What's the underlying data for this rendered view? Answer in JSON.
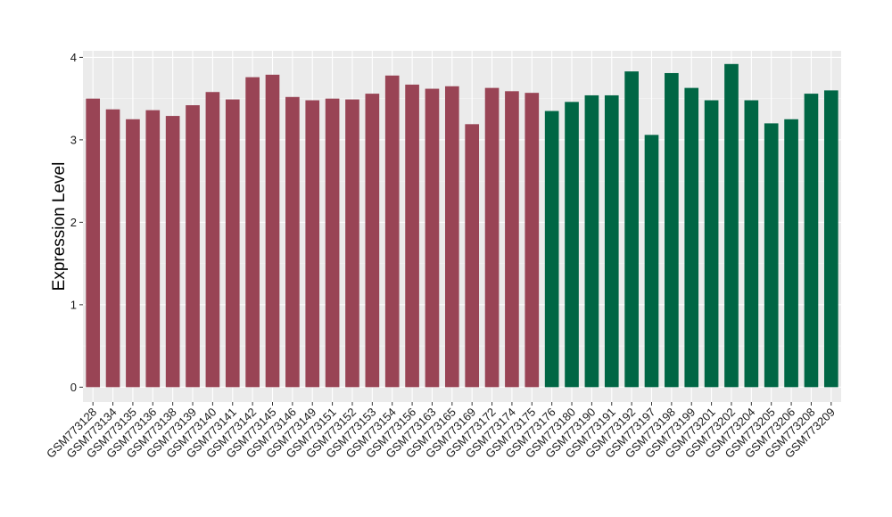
{
  "chart_data": {
    "type": "bar",
    "ylabel": "Expression Level",
    "xlabel": "",
    "ylim": [
      -0.18,
      4.08
    ],
    "yticks": [
      0,
      1,
      2,
      3,
      4
    ],
    "grid": true,
    "background": "#EBEBEB",
    "categories": [
      "GSM773128",
      "GSM773134",
      "GSM773135",
      "GSM773136",
      "GSM773138",
      "GSM773139",
      "GSM773140",
      "GSM773141",
      "GSM773142",
      "GSM773145",
      "GSM773146",
      "GSM773149",
      "GSM773151",
      "GSM773152",
      "GSM773153",
      "GSM773154",
      "GSM773156",
      "GSM773163",
      "GSM773165",
      "GSM773169",
      "GSM773172",
      "GSM773174",
      "GSM773175",
      "GSM773176",
      "GSM773180",
      "GSM773190",
      "GSM773191",
      "GSM773192",
      "GSM773197",
      "GSM773198",
      "GSM773199",
      "GSM773201",
      "GSM773202",
      "GSM773204",
      "GSM773205",
      "GSM773206",
      "GSM773208",
      "GSM773209"
    ],
    "values": [
      3.5,
      3.37,
      3.25,
      3.36,
      3.29,
      3.42,
      3.58,
      3.49,
      3.76,
      3.79,
      3.52,
      3.48,
      3.5,
      3.49,
      3.56,
      3.78,
      3.67,
      3.62,
      3.65,
      3.19,
      3.63,
      3.59,
      3.57,
      3.35,
      3.46,
      3.54,
      3.54,
      3.83,
      3.06,
      3.81,
      3.63,
      3.48,
      3.92,
      3.48,
      3.2,
      3.25,
      3.56,
      3.6
    ],
    "group_colors": [
      "#994455",
      "#006644"
    ],
    "groups": [
      0,
      0,
      0,
      0,
      0,
      0,
      0,
      0,
      0,
      0,
      0,
      0,
      0,
      0,
      0,
      0,
      0,
      0,
      0,
      0,
      0,
      0,
      0,
      1,
      1,
      1,
      1,
      1,
      1,
      1,
      1,
      1,
      1,
      1,
      1,
      1,
      1,
      1
    ]
  }
}
